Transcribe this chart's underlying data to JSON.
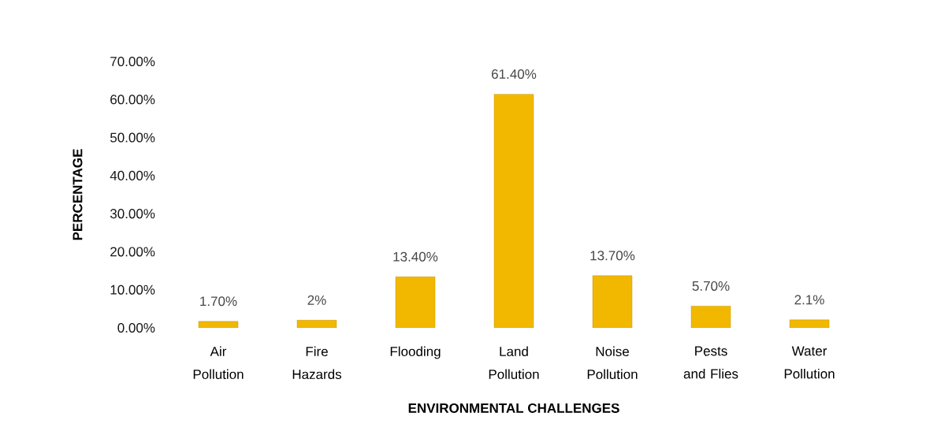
{
  "chart_data": {
    "type": "bar",
    "xlabel": "ENVIRONMENTAL CHALLENGES",
    "ylabel": "PERCENTAGE",
    "categories": [
      "Air Pollution",
      "Fire Hazards",
      "Flooding",
      "Land Pollution",
      "Noise Pollution",
      "Pests and Flies",
      "Water Pollution"
    ],
    "values": [
      1.7,
      2,
      13.4,
      61.4,
      13.7,
      5.7,
      2.1
    ],
    "value_labels": [
      "1.70%",
      "2%",
      "13.40%",
      "61.40%",
      "13.70%",
      "5.70%",
      "2.1%"
    ],
    "color": "#f2b800",
    "ylim": [
      0,
      70
    ],
    "yticks": [
      {
        "value": 0,
        "label": "0.00%"
      },
      {
        "value": 10,
        "label": "10.00%"
      },
      {
        "value": 20,
        "label": "20.00%"
      },
      {
        "value": 30,
        "label": "30.00%"
      },
      {
        "value": 40,
        "label": "40.00%"
      },
      {
        "value": 50,
        "label": "50.00%"
      },
      {
        "value": 60,
        "label": "60.00%"
      },
      {
        "value": 70,
        "label": "70.00%"
      }
    ]
  }
}
